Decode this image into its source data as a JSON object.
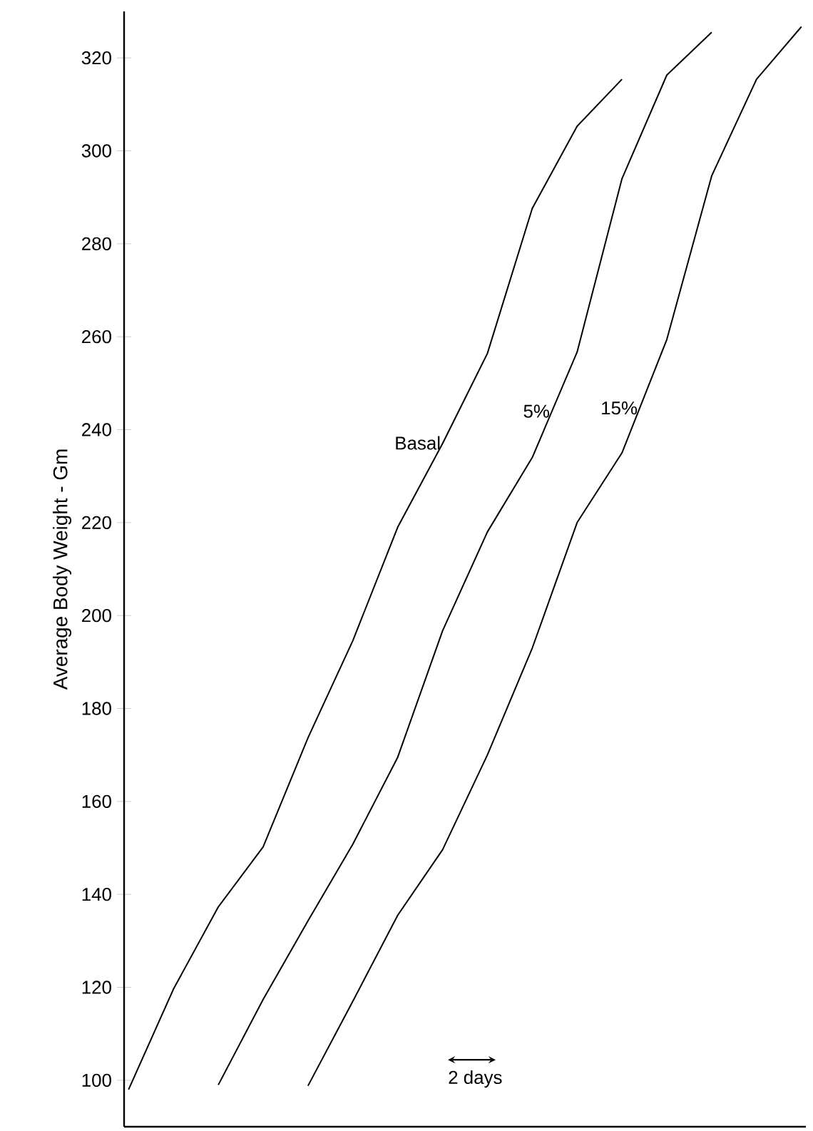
{
  "chart_data": {
    "type": "line",
    "ylabel": "Average Body Weight - Gm",
    "categories": [
      null,
      null,
      null,
      null,
      null,
      null,
      null,
      null,
      null,
      null,
      null,
      null,
      null,
      null,
      null,
      null
    ],
    "series": [
      {
        "name": "15%",
        "color": "#000000",
        "values": [
          null,
          null,
          null,
          null,
          98.8,
          117,
          135.5,
          149.6,
          170,
          193,
          220,
          235,
          259.4,
          294.6,
          315.4,
          326.7
        ]
      },
      {
        "name": "5%",
        "color": "#000000",
        "values": [
          null,
          null,
          99,
          117.4,
          134.3,
          150.8,
          169.5,
          196.7,
          218,
          234,
          256.7,
          294,
          316.3,
          325.5,
          null,
          null
        ]
      },
      {
        "name": "Basal",
        "color": "#000000",
        "values": [
          98,
          119.6,
          137.3,
          150.2,
          173.7,
          194.6,
          219,
          237,
          256.4,
          287.6,
          305.3,
          315.4,
          null,
          null,
          null,
          null
        ]
      }
    ],
    "ylim": [
      90,
      330
    ],
    "yticks": [
      100,
      120,
      140,
      160,
      180,
      200,
      220,
      240,
      260,
      280,
      300,
      320
    ],
    "tick_labels": "y",
    "line_style": "solid",
    "annotations": [
      "2 days"
    ]
  }
}
